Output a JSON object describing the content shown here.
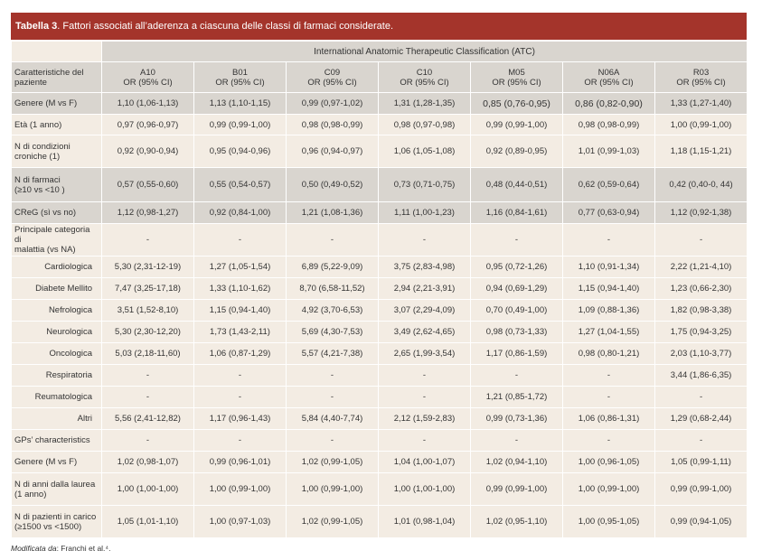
{
  "title": {
    "label": "Tabella 3",
    "text": ". Fattori associati all’aderenza a ciascuna delle classi di farmaci considerate."
  },
  "table": {
    "group_header": "International Anatomic Therapeutic Classification (ATC)",
    "row_header": [
      "Caratteristiche del",
      "paziente"
    ],
    "columns": [
      {
        "code": "A10",
        "sub": "OR (95% CI)"
      },
      {
        "code": "B01",
        "sub": "OR (95% CI)"
      },
      {
        "code": "C09",
        "sub": "OR (95% CI)"
      },
      {
        "code": "C10",
        "sub": "OR (95% CI)"
      },
      {
        "code": "M05",
        "sub": "OR (95% CI)"
      },
      {
        "code": "N06A",
        "sub": "OR (95% CI)"
      },
      {
        "code": "R03",
        "sub": "OR (95% CI)"
      }
    ],
    "rows": [
      {
        "label": [
          "Genere (M vs F)"
        ],
        "bg": "dark",
        "h": 24,
        "values": [
          "1,10 (1,06-1,13)",
          "1,13 (1,10-1,15)",
          "0,99 (0,97-1,02)",
          "1,31 (1,28-1,35)",
          "0,85 (0,76-0,95)",
          "0,86 (0,82-0,90)",
          "1,33 (1,27-1,40)"
        ]
      },
      {
        "label": [
          "Età (1 anno)"
        ],
        "bg": "light",
        "h": 23,
        "values": [
          "0,97 (0,96-0,97)",
          "0,99 (0,99-1,00)",
          "0,98 (0,98-0,99)",
          "0,98 (0,97-0,98)",
          "0,99 (0,99-1,00)",
          "0,98 (0,98-0,99)",
          "1,00 (0,99-1,00)"
        ]
      },
      {
        "label": [
          "N di condizioni",
          "croniche (1)"
        ],
        "bg": "light",
        "h": 36,
        "values": [
          "0,92 (0,90-0,94)",
          "0,95 (0,94-0,96)",
          "0,96 (0,94-0,97)",
          "1,06 (1,05-1,08)",
          "0,92 (0,89-0,95)",
          "1,01 (0,99-1,03)",
          "1,18 (1,15-1,21)"
        ]
      },
      {
        "label": [
          "N di farmaci",
          "(≥10 vs <10 )"
        ],
        "bg": "dark",
        "h": 38,
        "values": [
          "0,57 (0,55-0,60)",
          "0,55 (0,54-0,57)",
          "0,50 (0,49-0,52)",
          "0,73 (0,71-0,75)",
          "0,48 (0,44-0,51)",
          "0,62 (0,59-0,64)",
          "0,42 (0,40-0, 44)"
        ]
      },
      {
        "label": [
          "CReG (sì vs no)"
        ],
        "bg": "dark",
        "h": 24,
        "values": [
          "1,12 (0,98-1,27)",
          "0,92 (0,84-1,00)",
          "1,21 (1,08-1,36)",
          "1,11 (1,00-1,23)",
          "1,16 (0,84-1,61)",
          "0,77 (0,63-0,94)",
          "1,12 (0,92-1,38)"
        ]
      },
      {
        "label": [
          "Principale categoria di",
          "malattia (vs NA)"
        ],
        "bg": "light",
        "h": 36,
        "values": [
          "-",
          "-",
          "-",
          "-",
          "-",
          "-",
          "-"
        ]
      },
      {
        "label": [
          "Cardiologica"
        ],
        "sub": true,
        "bg": "light",
        "h": 24,
        "values": [
          "5,30 (2,31-12-19)",
          "1,27 (1,05-1,54)",
          "6,89 (5,22-9,09)",
          "3,75 (2,83-4,98)",
          "0,95 (0,72-1,26)",
          "1,10 (0,91-1,34)",
          "2,22 (1,21-4,10)"
        ]
      },
      {
        "label": [
          "Diabete Mellito"
        ],
        "sub": true,
        "bg": "light",
        "h": 24,
        "values": [
          "7,47 (3,25-17,18)",
          "1,33 (1,10-1,62)",
          "8,70 (6,58-11,52)",
          "2,94 (2,21-3,91)",
          "0,94 (0,69-1,29)",
          "1,15 (0,94-1,40)",
          "1,23 (0,66-2,30)"
        ]
      },
      {
        "label": [
          "Nefrologica"
        ],
        "sub": true,
        "bg": "light",
        "h": 24,
        "values": [
          "3,51 (1,52-8,10)",
          "1,15 (0,94-1,40)",
          "4,92 (3,70-6,53)",
          "3,07 (2,29-4,09)",
          "0,70 (0,49-1,00)",
          "1,09 (0,88-1,36)",
          "1,82 (0,98-3,38)"
        ]
      },
      {
        "label": [
          "Neurologica"
        ],
        "sub": true,
        "bg": "light",
        "h": 24,
        "values": [
          "5,30 (2,30-12,20)",
          "1,73 (1,43-2,11)",
          "5,69 (4,30-7,53)",
          "3,49 (2,62-4,65)",
          "0,98 (0,73-1,33)",
          "1,27 (1,04-1,55)",
          "1,75 (0,94-3,25)"
        ]
      },
      {
        "label": [
          "Oncologica"
        ],
        "sub": true,
        "bg": "light",
        "h": 24,
        "values": [
          "5,03 (2,18-11,60)",
          "1,06 (0,87-1,29)",
          "5,57 (4,21-7,38)",
          "2,65 (1,99-3,54)",
          "1,17 (0,86-1,59)",
          "0,98 (0,80-1,21)",
          "2,03 (1,10-3,77)"
        ]
      },
      {
        "label": [
          "Respiratoria"
        ],
        "sub": true,
        "bg": "light",
        "h": 24,
        "values": [
          "-",
          "-",
          "-",
          "-",
          "-",
          "-",
          "3,44 (1,86-6,35)"
        ]
      },
      {
        "label": [
          "Reumatologica"
        ],
        "sub": true,
        "bg": "light",
        "h": 24,
        "values": [
          "-",
          "-",
          "-",
          "-",
          "1,21 (0,85-1,72)",
          "-",
          "-"
        ]
      },
      {
        "label": [
          "Altri"
        ],
        "sub": true,
        "bg": "light",
        "h": 24,
        "values": [
          "5,56 (2,41-12,82)",
          "1,17 (0,96-1,43)",
          "5,84 (4,40-7,74)",
          "2,12 (1,59-2,83)",
          "0,99 (0,73-1,36)",
          "1,06 (0,86-1,31)",
          "1,29 (0,68-2,44)"
        ]
      },
      {
        "label": [
          "GPs’ characteristics"
        ],
        "bg": "light",
        "h": 24,
        "values": [
          "-",
          "-",
          "-",
          "-",
          "-",
          "-",
          "-"
        ]
      },
      {
        "label": [
          "Genere (M vs F)"
        ],
        "bg": "light",
        "h": 24,
        "values": [
          "1,02 (0,98-1,07)",
          "0,99 (0,96-1,01)",
          "1,02 (0,99-1,05)",
          "1,04 (1,00-1,07)",
          "1,02 (0,94-1,10)",
          "1,00 (0,96-1,05)",
          "1,05 (0,99-1,11)"
        ]
      },
      {
        "label": [
          "N di anni dalla laurea",
          "(1 anno)"
        ],
        "bg": "light",
        "h": 36,
        "values": [
          "1,00 (1,00-1,00)",
          "1,00 (0,99-1,00)",
          "1,00 (0,99-1,00)",
          "1,00 (1,00-1,00)",
          "0,99 (0,99-1,00)",
          "1,00 (0,99-1,00)",
          "0,99 (0,99-1,00)"
        ]
      },
      {
        "label": [
          "N di pazienti in carico",
          "(≥1500 vs <1500)"
        ],
        "bg": "light",
        "h": 36,
        "values": [
          "1,05 (1,01-1,10)",
          "1,00 (0,97-1,03)",
          "1,02 (0,99-1,05)",
          "1,01 (0,98-1,04)",
          "1,02 (0,95-1,10)",
          "1,00 (0,95-1,05)",
          "0,99 (0,94-1,05)"
        ]
      }
    ]
  },
  "footnote": {
    "label": "Modificata da",
    "text": ": Franchi et al.⁴."
  }
}
